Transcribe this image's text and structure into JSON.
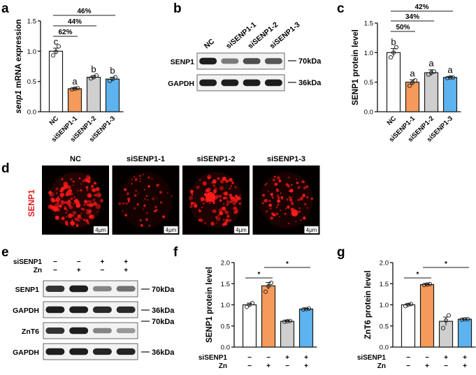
{
  "panel_letters": {
    "a": "a",
    "b": "b",
    "c": "c",
    "d": "d",
    "e": "e",
    "f": "f",
    "g": "g"
  },
  "colors": {
    "NC": "#ffffff",
    "siSENP1-1": "#f59a5a",
    "siSENP1-2": "#cfcfcf",
    "siSENP1-3": "#5cb3f0",
    "stroke": "#1a1a1a",
    "micro_red": "#ff1a1a",
    "side_label": "#e02020"
  },
  "chart_data": [
    {
      "id": "a",
      "type": "bar",
      "ylabel": "senp1 mRNA expression",
      "categories": [
        "NC",
        "siSENP1-1",
        "siSENP1-2",
        "siSENP1-3"
      ],
      "values": [
        1.0,
        0.38,
        0.57,
        0.54
      ],
      "errors": [
        0.05,
        0.015,
        0.025,
        0.03
      ],
      "points": [
        [
          0.93,
          0.99,
          1.08
        ],
        [
          0.37,
          0.38,
          0.39
        ],
        [
          0.55,
          0.57,
          0.6
        ],
        [
          0.51,
          0.54,
          0.57
        ]
      ],
      "ylim": [
        0,
        1.5
      ],
      "yticks": [
        "0.0",
        "0.5",
        "1.0",
        "1.5"
      ],
      "letters": [
        "c",
        "a",
        "b",
        "b"
      ],
      "comparisons": [
        {
          "label": "62%",
          "to": 1
        },
        {
          "label": "44%",
          "to": 2
        },
        {
          "label": "46%",
          "to": 3
        }
      ]
    },
    {
      "id": "c",
      "type": "bar",
      "ylabel": "SENP1 protein level",
      "categories": [
        "NC",
        "siSENP1-1",
        "siSENP1-2",
        "siSENP1-3"
      ],
      "values": [
        1.0,
        0.5,
        0.66,
        0.58
      ],
      "errors": [
        0.07,
        0.04,
        0.05,
        0.015
      ],
      "points": [
        [
          0.92,
          1.0,
          1.09
        ],
        [
          0.44,
          0.49,
          0.53
        ],
        [
          0.63,
          0.66,
          0.68
        ],
        [
          0.57,
          0.58,
          0.58
        ]
      ],
      "ylim": [
        0,
        1.5
      ],
      "yticks": [
        "0.0",
        "0.5",
        "1.0",
        "1.5"
      ],
      "letters": [
        "b",
        "a",
        "a",
        "a"
      ],
      "comparisons": [
        {
          "label": "50%",
          "to": 1
        },
        {
          "label": "34%",
          "to": 2
        },
        {
          "label": "42%",
          "to": 3
        }
      ]
    },
    {
      "id": "f",
      "type": "bar",
      "ylabel": "SENP1 protein level",
      "values": [
        1.0,
        1.45,
        0.61,
        0.9
      ],
      "errors": [
        0.04,
        0.08,
        0.02,
        0.015
      ],
      "points": [
        [
          0.95,
          1.0,
          1.04
        ],
        [
          1.31,
          1.44,
          1.52
        ],
        [
          0.6,
          0.61,
          0.62
        ],
        [
          0.89,
          0.9,
          0.91
        ]
      ],
      "ylim": [
        0,
        2.0
      ],
      "yticks": [
        "0.0",
        "0.5",
        "1.0",
        "1.5",
        "2.0"
      ],
      "sig": [
        {
          "label": "*",
          "from": 0,
          "to": 1
        },
        {
          "label": "*",
          "from": 1,
          "to": 3
        }
      ],
      "conditions": {
        "rows": [
          "siSENP1",
          "Zn"
        ],
        "matrix": [
          [
            "−",
            "−",
            "+",
            "+"
          ],
          [
            "−",
            "+",
            "−",
            "+"
          ]
        ]
      }
    },
    {
      "id": "g",
      "type": "bar",
      "ylabel": "ZnT6 protein level",
      "values": [
        1.0,
        1.48,
        0.61,
        0.66
      ],
      "errors": [
        0.03,
        0.02,
        0.1,
        0.01
      ],
      "points": [
        [
          0.97,
          1.0,
          1.02
        ],
        [
          1.47,
          1.48,
          1.49
        ],
        [
          0.45,
          0.63,
          0.75
        ],
        [
          0.65,
          0.66,
          0.66
        ]
      ],
      "ylim": [
        0,
        2.0
      ],
      "yticks": [
        "0.0",
        "0.5",
        "1.0",
        "1.5",
        "2.0"
      ],
      "sig": [
        {
          "label": "*",
          "from": 0,
          "to": 1
        },
        {
          "label": "*",
          "from": 1,
          "to": 3
        }
      ],
      "conditions": {
        "rows": [
          "siSENP1",
          "Zn"
        ],
        "matrix": [
          [
            "−",
            "−",
            "+",
            "+"
          ],
          [
            "−",
            "+",
            "−",
            "+"
          ]
        ]
      }
    }
  ],
  "blot_b": {
    "lanes": [
      "NC",
      "siSENP1-1",
      "siSENP1-2",
      "siSENP1-3"
    ],
    "rows": [
      {
        "label": "SENP1",
        "kda": "70kDa",
        "intensity": [
          0.95,
          0.5,
          0.72,
          0.68
        ]
      },
      {
        "label": "GAPDH",
        "kda": "36kDa",
        "intensity": [
          0.95,
          0.95,
          0.95,
          0.95
        ]
      }
    ]
  },
  "blot_e": {
    "conditions": {
      "rows": [
        "siSENP1",
        "Zn"
      ],
      "matrix": [
        [
          "−",
          "−",
          "+",
          "+"
        ],
        [
          "−",
          "+",
          "−",
          "+"
        ]
      ]
    },
    "rows": [
      {
        "label": "SENP1",
        "kda": "70kDa",
        "intensity": [
          0.85,
          0.95,
          0.45,
          0.55
        ]
      },
      {
        "label": "GAPDH",
        "kda": "36kDa",
        "intensity": [
          0.95,
          0.95,
          0.9,
          0.9
        ]
      },
      {
        "label": "ZnT6",
        "kda": "70kDa",
        "intensity": [
          0.85,
          0.95,
          0.45,
          0.35
        ]
      },
      {
        "label": "GAPDH",
        "kda": "36kDa",
        "intensity": [
          0.95,
          0.95,
          0.92,
          0.92
        ]
      }
    ]
  },
  "micro_d": {
    "side_label": "SENP1",
    "scale_label": "4μm",
    "panels": [
      {
        "title": "NC",
        "density": 1.0
      },
      {
        "title": "siSENP1-1",
        "density": 0.25
      },
      {
        "title": "siSENP1-2",
        "density": 0.75
      },
      {
        "title": "siSENP1-3",
        "density": 0.5
      }
    ]
  }
}
